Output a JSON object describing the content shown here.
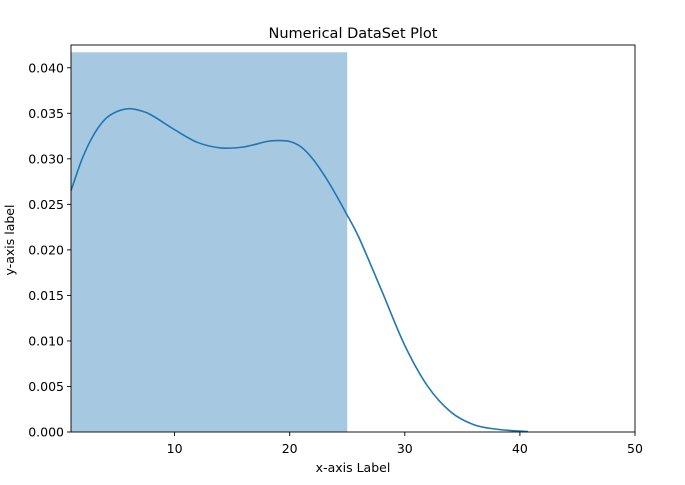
{
  "chart_data": {
    "type": "histogram",
    "title": "Numerical DataSet Plot",
    "xlabel": "x-axis Label",
    "ylabel": "y-axis label",
    "xlim": [
      1,
      50
    ],
    "ylim": [
      0,
      0.0425
    ],
    "x_ticks": [
      10,
      20,
      30,
      40,
      50
    ],
    "y_ticks": [
      0.0,
      0.005,
      0.01,
      0.015,
      0.02,
      0.025,
      0.03,
      0.035,
      0.04
    ],
    "x_tick_labels": [
      "10",
      "20",
      "30",
      "40",
      "50"
    ],
    "y_tick_labels": [
      "0.000",
      "0.005",
      "0.010",
      "0.015",
      "0.020",
      "0.025",
      "0.030",
      "0.035",
      "0.040"
    ],
    "bins": [
      {
        "x_start": 1,
        "x_end": 25,
        "density": 0.0417
      }
    ],
    "kde_curve": {
      "x": [
        1,
        2,
        3,
        4,
        5,
        6,
        7,
        8,
        10,
        12,
        14,
        16,
        18,
        19,
        20,
        21,
        22,
        23,
        24,
        25,
        26,
        28,
        30,
        32,
        34,
        36,
        38,
        40,
        40.7
      ],
      "y": [
        0.0265,
        0.0301,
        0.0327,
        0.0344,
        0.0352,
        0.0355,
        0.0353,
        0.0348,
        0.0332,
        0.0318,
        0.0312,
        0.0313,
        0.0319,
        0.032,
        0.0319,
        0.0313,
        0.03,
        0.0282,
        0.0261,
        0.0238,
        0.0214,
        0.0155,
        0.0095,
        0.005,
        0.0022,
        0.0008,
        0.0003,
        0.0001,
        5e-05
      ]
    },
    "colors": {
      "bar": "#a6c8e0",
      "line": "#1f77b4"
    },
    "grid": false
  }
}
